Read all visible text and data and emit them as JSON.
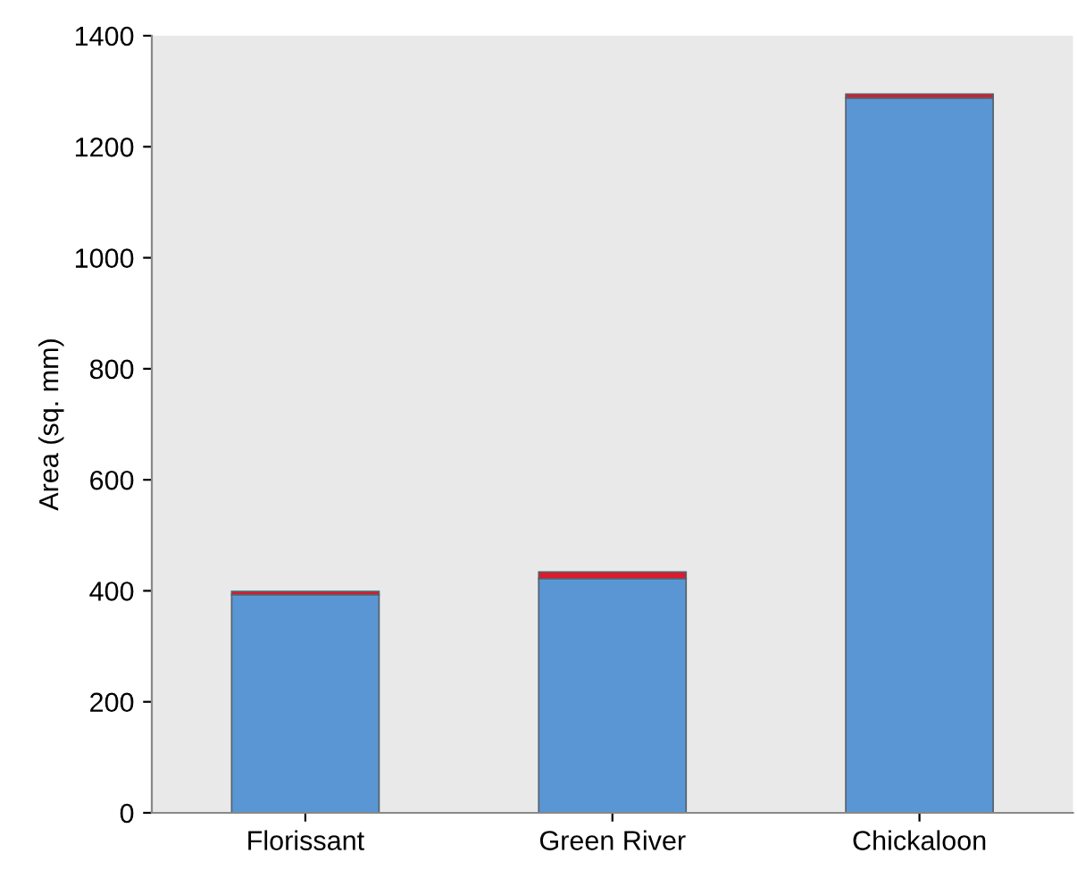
{
  "chart_data": {
    "type": "bar",
    "stacked": true,
    "ylabel": "Area (sq. mm)",
    "categories": [
      "Florissant",
      "Green River",
      "Chickaloon"
    ],
    "series": [
      {
        "color": "#5b96d4",
        "values": [
          393,
          422,
          1288
        ]
      },
      {
        "color": "#e0182c",
        "values": [
          6,
          12,
          7
        ]
      }
    ],
    "ylim": [
      0,
      1400
    ],
    "yticks": [
      0,
      200,
      400,
      600,
      800,
      1000,
      1200,
      1400
    ],
    "grid": false,
    "legend": false
  }
}
